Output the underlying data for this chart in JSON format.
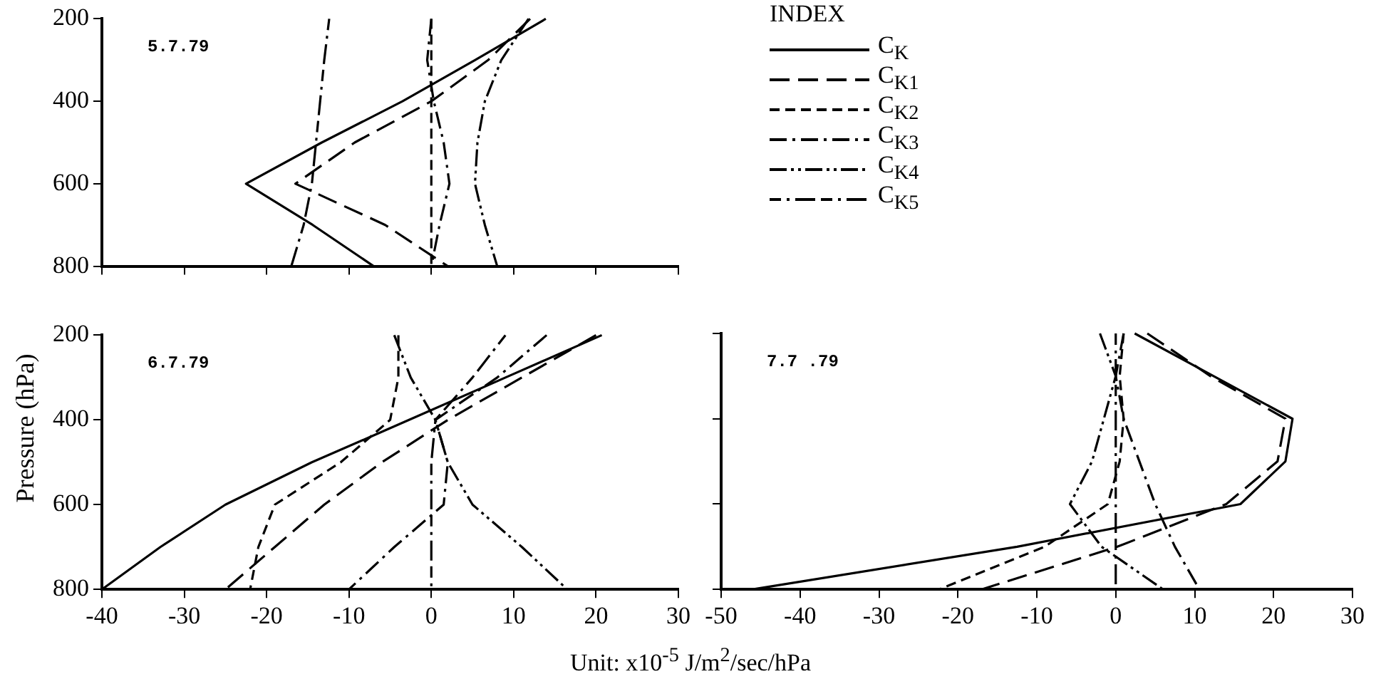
{
  "chart_data": [
    {
      "type": "line",
      "annotations": [
        "5.7.79"
      ],
      "legend": "right",
      "legend_title": "INDEX",
      "xlim": [
        -40,
        30
      ],
      "xticks": [
        -40,
        -30,
        -20,
        -10,
        0,
        10,
        20,
        30
      ],
      "ylim": [
        800,
        200
      ],
      "yticks": [
        200,
        400,
        600,
        800
      ],
      "tick_labels": "y",
      "grid": false,
      "marker": "none",
      "series": [
        {
          "name": "C$_{K}$",
          "color": "#000000",
          "line_style": "solid",
          "x": [
            13.9,
            5.3,
            -3.5,
            -13.3,
            -22.5,
            -14.4,
            -7
          ],
          "values": [
            200,
            300,
            400,
            500,
            600,
            700,
            800
          ]
        },
        {
          "name": "C$_{K1}$",
          "color": "#000000",
          "line_style": "longdash",
          "x": [
            12,
            6.9,
            0,
            -9.3,
            -16.5,
            -5.6,
            2
          ],
          "values": [
            200,
            300,
            400,
            500,
            600,
            700,
            800
          ]
        },
        {
          "name": "C$_{K2}$",
          "color": "#000000",
          "line_style": "dashed",
          "x": [
            0,
            0,
            0,
            0,
            0,
            0,
            0
          ],
          "values": [
            200,
            300,
            400,
            500,
            600,
            700,
            800
          ]
        },
        {
          "name": "C$_{K3}$",
          "color": "#000000",
          "line_style": "dashdot",
          "x": [
            0,
            -0.5,
            0.3,
            1.5,
            2.2,
            1,
            0
          ],
          "values": [
            200,
            300,
            400,
            500,
            600,
            700,
            800
          ]
        },
        {
          "name": "C$_{K4}$",
          "color": "#000000",
          "line_style": "dashdotdot",
          "x": [
            11.8,
            8.5,
            6.5,
            5.6,
            5.3,
            6.5,
            8
          ],
          "values": [
            200,
            300,
            400,
            500,
            600,
            700,
            800
          ]
        },
        {
          "name": "C$_{K5}$",
          "color": "#000000",
          "line_style": "longdashdot",
          "x": [
            -12.4,
            -13,
            -13.5,
            -14,
            -14.5,
            -15.5,
            -17
          ],
          "values": [
            200,
            300,
            400,
            500,
            600,
            700,
            800
          ]
        }
      ]
    },
    {
      "type": "line",
      "annotations": [
        "6.7.79"
      ],
      "xlabel": "Unit: x10$^{-5}$ J/m$^{2}$/sec/hPa",
      "ylabel": "Pressure (hPa)",
      "xlim": [
        -40,
        30
      ],
      "xticks": [
        -40,
        -30,
        -20,
        -10,
        0,
        10,
        20,
        30
      ],
      "ylim": [
        800,
        200
      ],
      "yticks": [
        200,
        400,
        600,
        800
      ],
      "grid": false,
      "marker": "none",
      "series": [
        {
          "color": "#000000",
          "line_style": "solid",
          "x": [
            20.7,
            9,
            -2.7,
            -14.5,
            -25,
            -32.9,
            -40
          ],
          "values": [
            200,
            300,
            400,
            500,
            600,
            700,
            800
          ]
        },
        {
          "color": "#000000",
          "line_style": "longdash",
          "x": [
            20,
            11,
            2,
            -6,
            -13,
            -19,
            -25
          ],
          "values": [
            200,
            300,
            400,
            500,
            600,
            700,
            800
          ]
        },
        {
          "color": "#000000",
          "line_style": "dashed",
          "x": [
            -4,
            -4,
            -5,
            -11,
            -19,
            -21,
            -22
          ],
          "values": [
            200,
            300,
            400,
            500,
            600,
            700,
            800
          ]
        },
        {
          "color": "#000000",
          "line_style": "dashdot",
          "x": [
            14,
            8,
            0.5,
            2,
            1.5,
            -4.5,
            -10
          ],
          "values": [
            200,
            300,
            400,
            500,
            600,
            700,
            800
          ]
        },
        {
          "color": "#000000",
          "line_style": "dashdotdot",
          "x": [
            -4.5,
            -2.5,
            0.5,
            2,
            5,
            11,
            16.5
          ],
          "values": [
            200,
            300,
            400,
            500,
            600,
            700,
            800
          ]
        },
        {
          "color": "#000000",
          "line_style": "longdashdot",
          "x": [
            9,
            5,
            0.5,
            0,
            0,
            0,
            0
          ],
          "values": [
            200,
            300,
            400,
            500,
            600,
            700,
            800
          ]
        }
      ]
    },
    {
      "type": "line",
      "annotations": [
        "7.7 .79"
      ],
      "xlim": [
        -50,
        30
      ],
      "xticks": [
        -50,
        -40,
        -30,
        -20,
        -10,
        0,
        10,
        20,
        30
      ],
      "ylim": [
        800,
        200
      ],
      "yticks": [
        200,
        400,
        600,
        800
      ],
      "tick_labels": "x",
      "grid": false,
      "marker": "none",
      "series": [
        {
          "color": "#000000",
          "line_style": "solid",
          "x": [
            2.4,
            12.4,
            22.4,
            21.5,
            15.8,
            -12.5,
            -46
          ],
          "values": [
            200,
            300,
            400,
            500,
            600,
            700,
            800
          ]
        },
        {
          "color": "#000000",
          "line_style": "longdash",
          "x": [
            4,
            12,
            21.5,
            20.5,
            14,
            0.2,
            -17
          ],
          "values": [
            200,
            300,
            400,
            500,
            600,
            700,
            800
          ]
        },
        {
          "color": "#000000",
          "line_style": "dashed",
          "x": [
            1,
            0.5,
            1,
            0.5,
            -1,
            -9,
            -22.4
          ],
          "values": [
            200,
            300,
            400,
            500,
            600,
            700,
            800
          ]
        },
        {
          "color": "#000000",
          "line_style": "dashdot",
          "x": [
            1,
            0,
            1,
            3,
            5,
            7.5,
            10.6
          ],
          "values": [
            200,
            300,
            400,
            500,
            600,
            700,
            800
          ]
        },
        {
          "color": "#000000",
          "line_style": "dashdotdot",
          "x": [
            -2,
            0,
            -1.5,
            -3,
            -5.8,
            -1.8,
            6
          ],
          "values": [
            200,
            300,
            400,
            500,
            600,
            700,
            800
          ]
        },
        {
          "color": "#000000",
          "line_style": "longdashdot",
          "x": [
            0,
            0,
            0,
            0,
            0,
            0,
            0
          ],
          "values": [
            200,
            300,
            400,
            500,
            600,
            700,
            800
          ]
        }
      ]
    }
  ]
}
